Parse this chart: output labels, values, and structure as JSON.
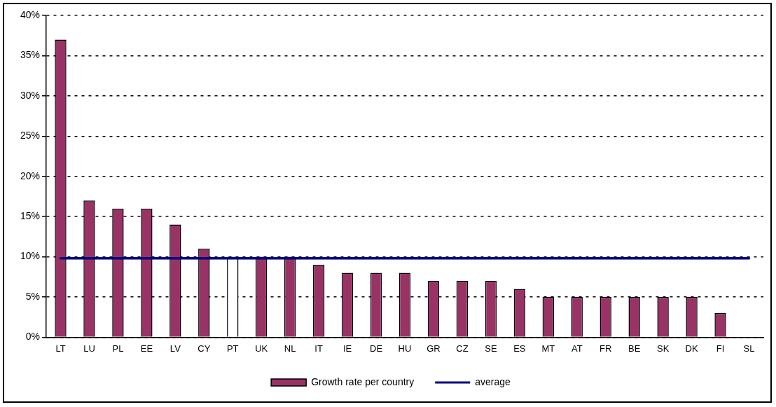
{
  "chart_data": {
    "type": "bar",
    "categories": [
      "LT",
      "LU",
      "PL",
      "EE",
      "LV",
      "CY",
      "PT",
      "UK",
      "NL",
      "IT",
      "IE",
      "DE",
      "HU",
      "GR",
      "CZ",
      "SE",
      "ES",
      "MT",
      "AT",
      "FR",
      "BE",
      "SK",
      "DK",
      "FI",
      "SL"
    ],
    "series": [
      {
        "name": "Growth rate per country",
        "color": "#993366",
        "colors": [
          "#993366",
          "#993366",
          "#993366",
          "#993366",
          "#993366",
          "#993366",
          "#ffffff",
          "#993366",
          "#993366",
          "#993366",
          "#993366",
          "#993366",
          "#993366",
          "#993366",
          "#993366",
          "#993366",
          "#993366",
          "#993366",
          "#993366",
          "#993366",
          "#993366",
          "#993366",
          "#993366",
          "#993366",
          "#993366"
        ],
        "values": [
          37,
          17,
          16,
          16,
          14,
          11,
          10,
          10,
          10,
          9,
          8,
          8,
          8,
          7,
          7,
          7,
          6,
          5,
          5,
          5,
          5,
          5,
          5,
          3,
          0
        ]
      },
      {
        "name": "average",
        "type": "line",
        "color": "#000080",
        "values": [
          9.8,
          9.8,
          9.8,
          9.8,
          9.8,
          9.8,
          9.8,
          9.8,
          9.8,
          9.8,
          9.8,
          9.8,
          9.8,
          9.8,
          9.8,
          9.8,
          9.8,
          9.8,
          9.8,
          9.8,
          9.8,
          9.8,
          9.8,
          9.8,
          9.8
        ]
      }
    ],
    "ylim": [
      0,
      40
    ],
    "yticks": [
      {
        "value": 0,
        "label": "0%"
      },
      {
        "value": 5,
        "label": "5%"
      },
      {
        "value": 10,
        "label": "10%"
      },
      {
        "value": 15,
        "label": "15%"
      },
      {
        "value": 20,
        "label": "20%"
      },
      {
        "value": 25,
        "label": "25%"
      },
      {
        "value": 30,
        "label": "30%"
      },
      {
        "value": 35,
        "label": "35%"
      },
      {
        "value": 40,
        "label": "40%"
      }
    ],
    "grid": "y",
    "legend": "bottom",
    "marker": "none"
  }
}
